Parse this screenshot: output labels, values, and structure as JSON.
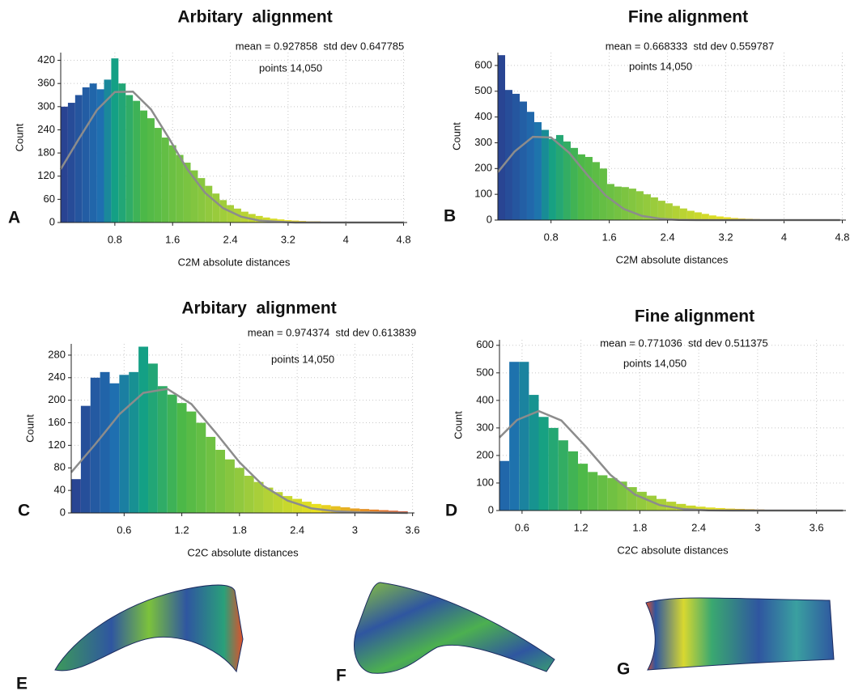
{
  "chart_data": [
    {
      "type": "histogram",
      "panel_label": "A",
      "title": "Arbitary  alignment",
      "stats_label": "mean = 0.927858  std dev 0.647785",
      "points_label": "points 14,050",
      "xlabel": "C2M absolute distances",
      "ylabel": "Count",
      "grid": true,
      "xlim": [
        0.05,
        4.85
      ],
      "xticks": [
        0.8,
        1.6,
        2.4,
        3.2,
        4,
        4.8
      ],
      "ylim": [
        0,
        440
      ],
      "yticks": [
        0,
        60,
        120,
        180,
        240,
        300,
        360,
        420
      ],
      "bins": [
        0.05,
        0.15,
        0.25,
        0.35,
        0.45,
        0.55,
        0.65,
        0.75,
        0.85,
        0.95,
        1.05,
        1.15,
        1.25,
        1.35,
        1.45,
        1.55,
        1.65,
        1.75,
        1.85,
        1.95,
        2.05,
        2.15,
        2.25,
        2.35,
        2.45,
        2.55,
        2.65,
        2.75,
        2.85,
        2.95,
        3.05,
        3.15,
        3.25,
        3.35,
        3.45,
        3.55,
        3.65,
        3.75,
        3.85,
        3.95,
        4.05,
        4.15,
        4.25,
        4.35,
        4.45,
        4.55,
        4.65,
        4.75,
        4.85
      ],
      "values": [
        300,
        310,
        330,
        350,
        360,
        345,
        370,
        425,
        360,
        330,
        315,
        290,
        270,
        245,
        220,
        200,
        175,
        155,
        135,
        115,
        95,
        75,
        58,
        45,
        36,
        28,
        22,
        17,
        13,
        10,
        8,
        6,
        5,
        4,
        3,
        3,
        2,
        2,
        2,
        2,
        1,
        1,
        1,
        1,
        1,
        1,
        1,
        1
      ],
      "colormap": [
        {
          "value": 0,
          "color": "#2b3a8c"
        },
        {
          "value": 0.6,
          "color": "#1f6fb0"
        },
        {
          "value": 0.8,
          "color": "#14a085"
        },
        {
          "value": 1.2,
          "color": "#4cb848"
        },
        {
          "value": 2.4,
          "color": "#a8cf3a"
        },
        {
          "value": 3.2,
          "color": "#e8e020"
        },
        {
          "value": 4.8,
          "color": "#e0402a"
        }
      ],
      "fit": {
        "color": "#8c8c8c",
        "x": [
          0.05,
          0.3,
          0.55,
          0.8,
          1.05,
          1.3,
          1.55,
          1.8,
          2.05,
          2.3,
          2.55,
          2.8,
          3.05,
          3.3,
          4.8
        ],
        "values": [
          138,
          216,
          291,
          338,
          339,
          293,
          218,
          139,
          77,
          37,
          15,
          5,
          2,
          0,
          0
        ]
      }
    },
    {
      "type": "histogram",
      "panel_label": "B",
      "title": "Fine alignment",
      "stats_label": "mean = 0.668333  std dev 0.559787",
      "points_label": "points 14,050",
      "xlabel": "C2M absolute distances",
      "ylabel": "Count",
      "grid": true,
      "xlim": [
        0.07,
        4.85
      ],
      "xticks": [
        0.8,
        1.6,
        2.4,
        3.2,
        4,
        4.8
      ],
      "ylim": [
        0,
        650
      ],
      "yticks": [
        0,
        100,
        200,
        300,
        400,
        500,
        600
      ],
      "bins": [
        0.07,
        0.17,
        0.27,
        0.37,
        0.47,
        0.57,
        0.67,
        0.77,
        0.87,
        0.97,
        1.07,
        1.17,
        1.27,
        1.37,
        1.47,
        1.57,
        1.67,
        1.77,
        1.87,
        1.97,
        2.07,
        2.17,
        2.27,
        2.37,
        2.47,
        2.57,
        2.67,
        2.77,
        2.87,
        2.97,
        3.07,
        3.17,
        3.27,
        3.37,
        3.47,
        3.57,
        3.67,
        3.77,
        3.87,
        3.97,
        4.07,
        4.17,
        4.27,
        4.37,
        4.47,
        4.57,
        4.67,
        4.77
      ],
      "values": [
        640,
        505,
        490,
        460,
        420,
        380,
        350,
        315,
        330,
        305,
        280,
        255,
        245,
        225,
        200,
        140,
        130,
        128,
        122,
        112,
        100,
        88,
        75,
        65,
        55,
        45,
        36,
        30,
        24,
        18,
        14,
        11,
        8,
        6,
        5,
        4,
        3,
        3,
        2,
        2,
        2,
        2,
        1,
        1,
        1,
        1,
        1
      ],
      "colormap": [
        {
          "value": 0,
          "color": "#2b3a8c"
        },
        {
          "value": 0.6,
          "color": "#1f6fb0"
        },
        {
          "value": 0.8,
          "color": "#14a085"
        },
        {
          "value": 1.2,
          "color": "#4cb848"
        },
        {
          "value": 2.4,
          "color": "#a8cf3a"
        },
        {
          "value": 3.2,
          "color": "#e8e020"
        },
        {
          "value": 4.8,
          "color": "#e0402a"
        }
      ],
      "fit": {
        "color": "#8c8c8c",
        "x": [
          0.07,
          0.3,
          0.55,
          0.8,
          1.05,
          1.3,
          1.55,
          1.8,
          2.05,
          2.3,
          2.55,
          2.8,
          4.77
        ],
        "values": [
          186,
          266,
          323,
          321,
          261,
          175,
          95,
          43,
          16,
          5,
          1,
          0,
          0
        ]
      }
    },
    {
      "type": "histogram",
      "panel_label": "C",
      "title": "Arbitary  alignment",
      "stats_label": "mean = 0.974374  std dev 0.613839",
      "points_label": "points 14,050",
      "xlabel": "C2C absolute distances",
      "ylabel": "Count",
      "grid": true,
      "xlim": [
        0.05,
        3.62
      ],
      "xticks": [
        0.6,
        1.2,
        1.8,
        2.4,
        3,
        3.6
      ],
      "ylim": [
        0,
        300
      ],
      "yticks": [
        0,
        40,
        80,
        120,
        160,
        200,
        240,
        280
      ],
      "bins": [
        0.05,
        0.15,
        0.25,
        0.35,
        0.45,
        0.55,
        0.65,
        0.75,
        0.85,
        0.95,
        1.05,
        1.15,
        1.25,
        1.35,
        1.45,
        1.55,
        1.65,
        1.75,
        1.85,
        1.95,
        2.05,
        2.15,
        2.25,
        2.35,
        2.45,
        2.55,
        2.65,
        2.75,
        2.85,
        2.95,
        3.05,
        3.15,
        3.25,
        3.35,
        3.45,
        3.55
      ],
      "values": [
        60,
        190,
        240,
        250,
        230,
        245,
        250,
        295,
        265,
        225,
        210,
        195,
        180,
        160,
        135,
        112,
        95,
        80,
        66,
        55,
        45,
        37,
        30,
        25,
        20,
        16,
        14,
        12,
        10,
        8,
        7,
        6,
        5,
        4,
        3
      ],
      "colormap": [
        {
          "value": 0,
          "color": "#2b3a8c"
        },
        {
          "value": 0.5,
          "color": "#1f6fb0"
        },
        {
          "value": 0.8,
          "color": "#14a085"
        },
        {
          "value": 1.2,
          "color": "#4cb848"
        },
        {
          "value": 2.0,
          "color": "#a8cf3a"
        },
        {
          "value": 2.6,
          "color": "#e8e020"
        },
        {
          "value": 3.6,
          "color": "#e0402a"
        }
      ],
      "fit": {
        "color": "#8c8c8c",
        "x": [
          0.05,
          0.3,
          0.55,
          0.8,
          1.05,
          1.3,
          1.55,
          1.8,
          2.05,
          2.3,
          2.55,
          2.8,
          3.05,
          3.55
        ],
        "values": [
          72,
          122,
          175,
          213,
          220,
          193,
          143,
          90,
          48,
          22,
          8,
          3,
          1,
          0
        ]
      }
    },
    {
      "type": "histogram",
      "panel_label": "D",
      "title": "Fine alignment",
      "stats_label": "mean = 0.771036  std dev 0.511375",
      "points_label": "points 14,050",
      "xlabel": "C2C absolute distances",
      "ylabel": "Count",
      "grid": true,
      "xlim": [
        0.37,
        3.9
      ],
      "xticks": [
        0.6,
        1.2,
        1.8,
        2.4,
        3,
        3.6
      ],
      "ylim": [
        0,
        620
      ],
      "yticks": [
        0,
        100,
        200,
        300,
        400,
        500,
        600
      ],
      "bins": [
        0.37,
        0.47,
        0.57,
        0.67,
        0.77,
        0.87,
        0.97,
        1.07,
        1.17,
        1.27,
        1.37,
        1.47,
        1.57,
        1.67,
        1.77,
        1.87,
        1.97,
        2.07,
        2.17,
        2.27,
        2.37,
        2.47,
        2.57,
        2.67,
        2.77,
        2.87,
        2.97,
        3.07,
        3.17,
        3.27,
        3.37,
        3.47,
        3.57,
        3.67,
        3.77,
        3.87
      ],
      "values": [
        180,
        540,
        540,
        420,
        340,
        300,
        255,
        215,
        170,
        140,
        128,
        118,
        105,
        85,
        68,
        54,
        42,
        32,
        24,
        18,
        14,
        11,
        9,
        7,
        6,
        5,
        4,
        3,
        3,
        2,
        2,
        2,
        1,
        1,
        1
      ],
      "colormap": [
        {
          "value": 0,
          "color": "#2b3a8c"
        },
        {
          "value": 0.5,
          "color": "#1f6fb0"
        },
        {
          "value": 0.8,
          "color": "#14a085"
        },
        {
          "value": 1.2,
          "color": "#4cb848"
        },
        {
          "value": 2.0,
          "color": "#a8cf3a"
        },
        {
          "value": 2.6,
          "color": "#e8e020"
        },
        {
          "value": 3.6,
          "color": "#e0402a"
        }
      ],
      "fit": {
        "color": "#8c8c8c",
        "x": [
          0.37,
          0.55,
          0.77,
          1.0,
          1.25,
          1.5,
          1.75,
          2.0,
          2.25,
          2.5,
          2.75,
          3.87
        ],
        "values": [
          265,
          329,
          361,
          327,
          232,
          130,
          58,
          20,
          5,
          1,
          0,
          0
        ]
      }
    }
  ],
  "image_panels": [
    {
      "label": "E"
    },
    {
      "label": "F"
    },
    {
      "label": "G"
    }
  ]
}
